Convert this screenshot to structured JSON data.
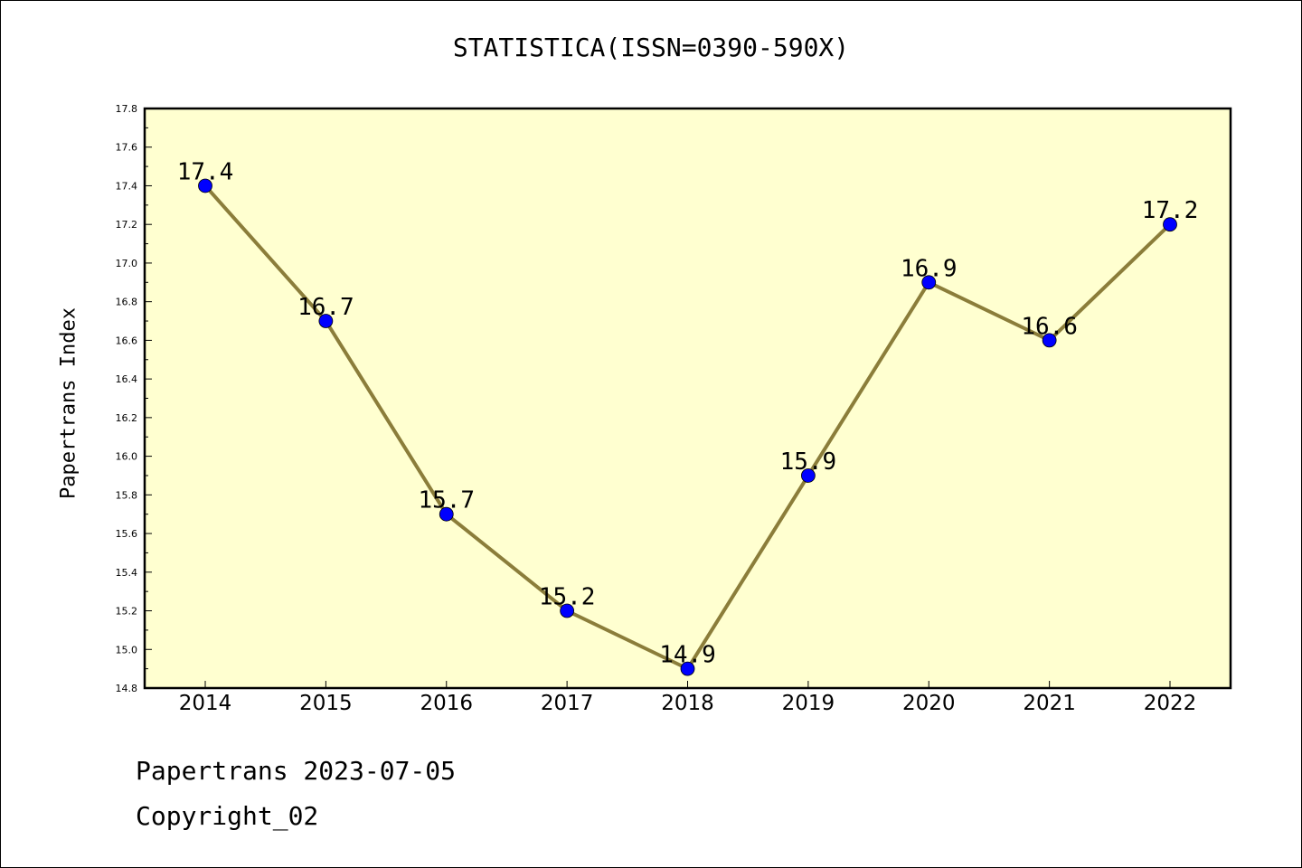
{
  "chart_data": {
    "type": "line",
    "title": "STATISTICA(ISSN=0390-590X)",
    "xlabel": "",
    "ylabel": "Papertrans Index",
    "categories": [
      "2014",
      "2015",
      "2016",
      "2017",
      "2018",
      "2019",
      "2020",
      "2021",
      "2022"
    ],
    "values": [
      17.4,
      16.7,
      15.7,
      15.2,
      14.9,
      15.9,
      16.9,
      16.6,
      17.2
    ],
    "data_labels": [
      "17.4",
      "16.7",
      "15.7",
      "15.2",
      "14.9",
      "15.9",
      "16.9",
      "16.6",
      "17.2"
    ],
    "ylim": [
      14.8,
      17.8
    ],
    "yticks": [
      "14.8",
      "15.0",
      "15.2",
      "15.4",
      "15.6",
      "15.8",
      "16.0",
      "16.2",
      "16.4",
      "16.6",
      "16.8",
      "17.0",
      "17.2",
      "17.4",
      "17.6",
      "17.8"
    ],
    "grid": false,
    "colors": {
      "line": "#8B7D3A",
      "marker": "#0000FF",
      "plot_background": "#FFFFD0"
    }
  },
  "footer": {
    "line1": "Papertrans 2023-07-05",
    "line2": "Copyright_02"
  }
}
